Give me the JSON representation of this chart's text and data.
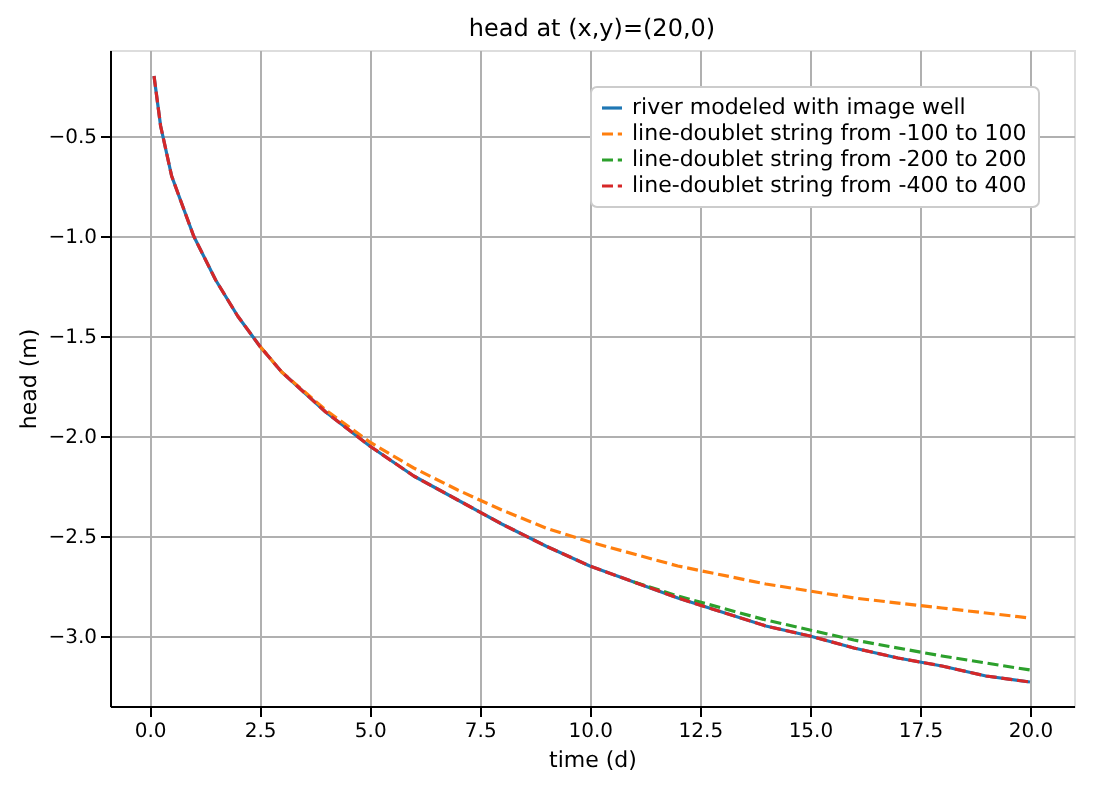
{
  "chart_data": {
    "type": "line",
    "title": "head at (x,y)=(20,0)",
    "xlabel": "time (d)",
    "ylabel": "head (m)",
    "xlim": [
      -0.9,
      21
    ],
    "ylim": [
      -3.35,
      -0.07
    ],
    "xticks": [
      {
        "value": 0,
        "label": "0.0"
      },
      {
        "value": 2.5,
        "label": "2.5"
      },
      {
        "value": 5,
        "label": "5.0"
      },
      {
        "value": 7.5,
        "label": "7.5"
      },
      {
        "value": 10,
        "label": "10.0"
      },
      {
        "value": 12.5,
        "label": "12.5"
      },
      {
        "value": 15,
        "label": "15.0"
      },
      {
        "value": 17.5,
        "label": "17.5"
      },
      {
        "value": 20,
        "label": "20.0"
      }
    ],
    "yticks": [
      {
        "value": -3,
        "label": "−3.0"
      },
      {
        "value": -2.5,
        "label": "−2.5"
      },
      {
        "value": -2,
        "label": "−2.0"
      },
      {
        "value": -1.5,
        "label": "−1.5"
      },
      {
        "value": -1,
        "label": "−1.0"
      },
      {
        "value": -0.5,
        "label": "−0.5"
      }
    ],
    "grid": true,
    "legend": "top right",
    "marker": "none",
    "series": [
      {
        "name": "river modeled with image well",
        "color": "#1f77b4",
        "line_style": "solid",
        "x": [
          0.1,
          0.25,
          0.5,
          1,
          1.5,
          2,
          2.5,
          3,
          4,
          5,
          6,
          7,
          8,
          9,
          10,
          11,
          12,
          13,
          14,
          15,
          16,
          17,
          18,
          19,
          20
        ],
        "values": [
          -0.2,
          -0.45,
          -0.7,
          -1.0,
          -1.22,
          -1.4,
          -1.55,
          -1.68,
          -1.88,
          -2.05,
          -2.2,
          -2.32,
          -2.44,
          -2.55,
          -2.65,
          -2.73,
          -2.81,
          -2.88,
          -2.95,
          -3.0,
          -3.06,
          -3.11,
          -3.15,
          -3.2,
          -3.23
        ]
      },
      {
        "name": "line-doublet string from -100 to 100",
        "color": "#ff7f0e",
        "line_style": "dashed",
        "x": [
          2.5,
          3,
          4,
          5,
          6,
          7,
          8,
          9,
          10,
          12,
          14,
          16,
          18,
          20
        ],
        "values": [
          -1.55,
          -1.68,
          -1.87,
          -2.03,
          -2.16,
          -2.27,
          -2.37,
          -2.46,
          -2.53,
          -2.65,
          -2.74,
          -2.81,
          -2.86,
          -2.91
        ]
      },
      {
        "name": "line-doublet string from -200 to 200",
        "color": "#2ca02c",
        "line_style": "dashed",
        "x": [
          11,
          12,
          14,
          16,
          18,
          20
        ],
        "values": [
          -2.73,
          -2.8,
          -2.92,
          -3.02,
          -3.1,
          -3.17
        ]
      },
      {
        "name": "line-doublet string from -400 to 400",
        "color": "#d62728",
        "line_style": "dashed",
        "x": [
          0.1,
          0.25,
          0.5,
          1,
          1.5,
          2,
          2.5,
          3,
          4,
          5,
          6,
          7,
          8,
          9,
          10,
          11,
          12,
          13,
          14,
          15,
          16,
          17,
          18,
          19,
          20
        ],
        "values": [
          -0.2,
          -0.45,
          -0.7,
          -1.0,
          -1.22,
          -1.4,
          -1.55,
          -1.68,
          -1.88,
          -2.05,
          -2.2,
          -2.32,
          -2.44,
          -2.55,
          -2.65,
          -2.73,
          -2.81,
          -2.88,
          -2.95,
          -3.0,
          -3.06,
          -3.11,
          -3.15,
          -3.2,
          -3.23
        ]
      }
    ]
  }
}
